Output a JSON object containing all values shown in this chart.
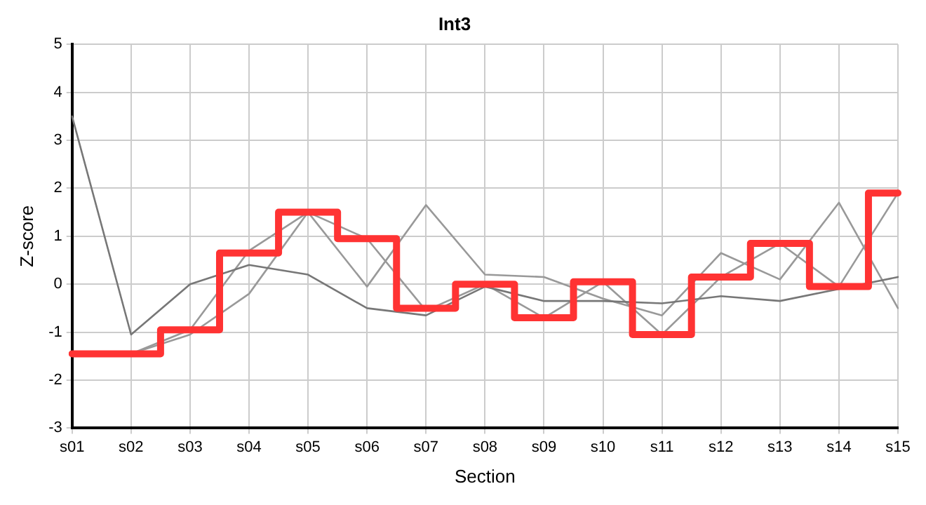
{
  "chart_data": {
    "type": "line",
    "title": "Int3",
    "xlabel": "Section",
    "ylabel": "Z-score",
    "categories": [
      "s01",
      "s02",
      "s03",
      "s04",
      "s05",
      "s06",
      "s07",
      "s08",
      "s09",
      "s10",
      "s11",
      "s12",
      "s13",
      "s14",
      "s15"
    ],
    "series": [
      {
        "color": "#777777",
        "values": [
          3.5,
          -1.05,
          0.0,
          0.4,
          0.2,
          -0.5,
          -0.65,
          -0.05,
          -0.35,
          -0.35,
          -0.4,
          -0.25,
          -0.35,
          -0.1,
          0.15
        ]
      },
      {
        "color": "#999999",
        "values": [
          null,
          -1.45,
          -1.05,
          -0.2,
          1.5,
          -0.05,
          1.65,
          0.2,
          0.15,
          -0.3,
          -0.65,
          0.65,
          0.1,
          1.7,
          -0.5
        ]
      },
      {
        "color": "#999999",
        "values": [
          null,
          -1.45,
          -0.95,
          0.7,
          1.5,
          0.95,
          -0.55,
          0.0,
          -0.7,
          0.05,
          -1.05,
          0.15,
          0.85,
          -0.05,
          1.9
        ]
      },
      {
        "type": "step",
        "color": "#ff3333",
        "values": [
          -1.45,
          -1.45,
          -0.95,
          0.65,
          1.5,
          0.95,
          -0.5,
          0.0,
          -0.7,
          0.05,
          -1.05,
          0.15,
          0.85,
          -0.05,
          1.9
        ]
      }
    ],
    "ylim": [
      -3,
      5
    ],
    "yticks": [
      -3,
      -2,
      -1,
      0,
      1,
      2,
      3,
      4,
      5
    ],
    "grid": true,
    "legend": false,
    "marker": "none"
  }
}
